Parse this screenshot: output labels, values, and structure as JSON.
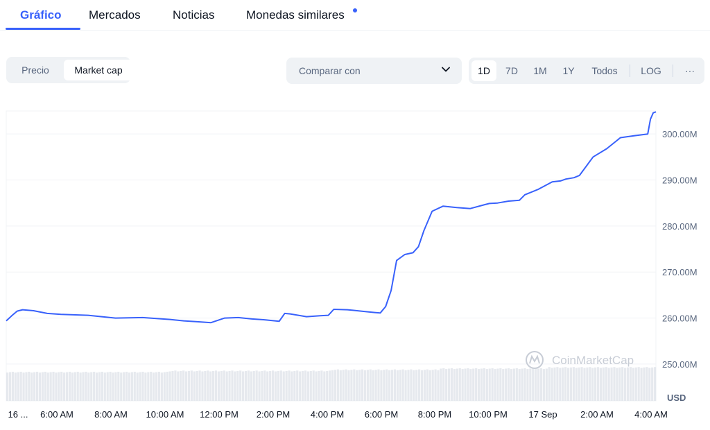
{
  "tabs": [
    {
      "label": "Gráfico",
      "active": true
    },
    {
      "label": "Mercados",
      "active": false
    },
    {
      "label": "Noticias",
      "active": false
    },
    {
      "label": "Monedas similares",
      "active": false,
      "has_dot": true
    }
  ],
  "toggle": {
    "options": [
      "Precio",
      "Market cap"
    ],
    "selected": "Market cap"
  },
  "compare": {
    "label": "Comparar con"
  },
  "ranges": {
    "options": [
      "1D",
      "7D",
      "1M",
      "1Y",
      "Todos"
    ],
    "selected": "1D",
    "log_label": "LOG",
    "more_label": "···"
  },
  "colors": {
    "accent": "#3861fb",
    "line": "#3861fb",
    "volume": "#dde1e8",
    "grid": "#f1f3f6",
    "axis_text": "#58667e"
  },
  "watermark": "CoinMarketCap",
  "chart_data": {
    "type": "line",
    "currency_label": "USD",
    "y_ticks": [
      "300.00M",
      "290.00M",
      "280.00M",
      "270.00M",
      "260.00M",
      "250.00M"
    ],
    "y_tick_values": [
      300,
      290,
      280,
      270,
      260,
      250
    ],
    "ylim": [
      242,
      305
    ],
    "x_ticks": [
      "16 ...",
      "6:00 AM",
      "8:00 AM",
      "10:00 AM",
      "12:00 PM",
      "2:00 PM",
      "4:00 PM",
      "6:00 PM",
      "8:00 PM",
      "10:00 PM",
      "17 Sep",
      "2:00 AM",
      "4:00 AM"
    ],
    "x_tick_hours": [
      4.0,
      6,
      8,
      10,
      12,
      14,
      16,
      18,
      20,
      22,
      24,
      26,
      28
    ],
    "xlim": [
      4.0,
      27.8
    ],
    "grid": true,
    "series": [
      {
        "unit": "M USD",
        "x": [
          4.0,
          4.2,
          4.4,
          4.6,
          5.0,
          5.5,
          6.0,
          7.0,
          8.0,
          9.0,
          10.0,
          10.5,
          11.0,
          11.5,
          12.0,
          12.5,
          13.0,
          13.5,
          14.0,
          14.2,
          14.4,
          14.7,
          15.0,
          15.5,
          15.8,
          16.0,
          16.5,
          17.0,
          17.5,
          17.7,
          17.9,
          18.1,
          18.3,
          18.6,
          18.9,
          19.1,
          19.3,
          19.6,
          20.0,
          20.5,
          21.0,
          21.5,
          21.7,
          22.0,
          22.4,
          22.8,
          23.0,
          23.5,
          24.0,
          24.3,
          24.5,
          24.8,
          25.0,
          25.5,
          26.0,
          26.5,
          27.0,
          27.5,
          27.6,
          27.7,
          27.8
        ],
        "y": [
          259.4,
          260.5,
          261.5,
          261.8,
          261.6,
          261.0,
          260.8,
          260.6,
          260.0,
          260.1,
          259.7,
          259.4,
          259.2,
          259.0,
          260.0,
          260.1,
          259.8,
          259.6,
          259.3,
          261.0,
          260.9,
          260.6,
          260.3,
          260.5,
          260.6,
          261.9,
          261.8,
          261.5,
          261.2,
          261.1,
          262.5,
          266.0,
          272.5,
          273.8,
          274.2,
          275.5,
          279.0,
          283.2,
          284.3,
          284.0,
          283.8,
          284.6,
          284.9,
          285.0,
          285.4,
          285.6,
          286.8,
          288.0,
          289.6,
          289.8,
          290.2,
          290.5,
          291.0,
          295.0,
          296.8,
          299.2,
          299.6,
          300.0,
          303.2,
          304.6,
          304.8
        ]
      }
    ],
    "volume_series_M": [
      24,
      24,
      24,
      25,
      25,
      25,
      26,
      26,
      27,
      27,
      28,
      28
    ]
  }
}
